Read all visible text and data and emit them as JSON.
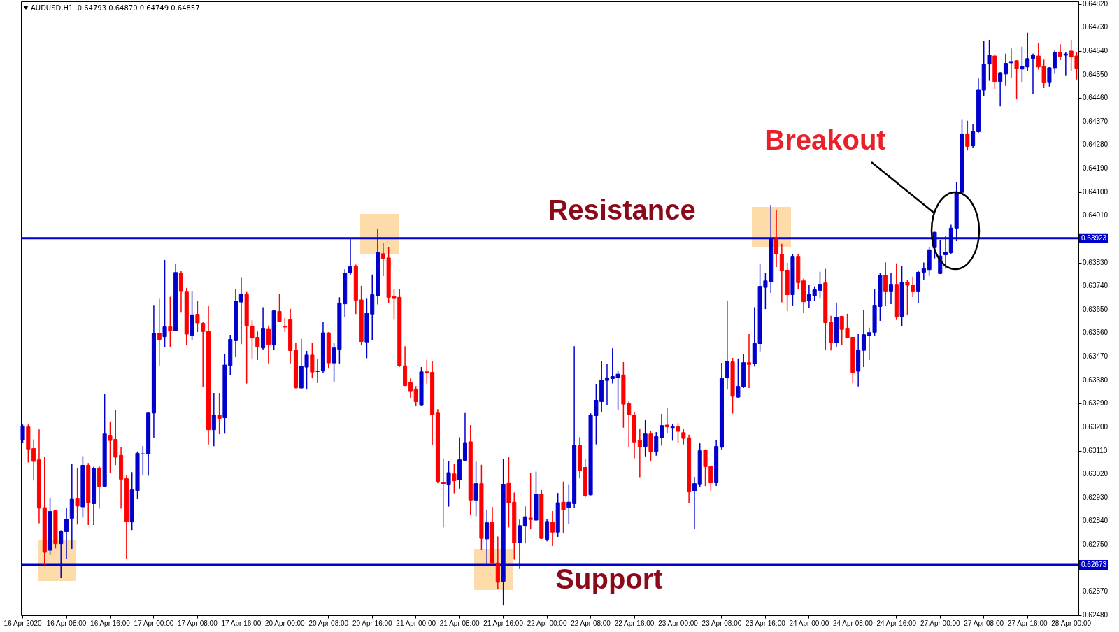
{
  "chart_data": {
    "type": "candlestick",
    "title": "AUDUSD,H1  0.64793 0.64870 0.64749 0.64857",
    "categories": [
      "16 Apr 2020",
      null,
      null,
      null,
      null,
      null,
      null,
      null,
      "16 Apr 08:00",
      null,
      null,
      null,
      null,
      null,
      null,
      null,
      "16 Apr 16:00",
      null,
      null,
      null,
      null,
      null,
      null,
      null,
      "17 Apr 00:00",
      null,
      null,
      null,
      null,
      null,
      null,
      null,
      "17 Apr 08:00",
      null,
      null,
      null,
      null,
      null,
      null,
      null,
      "17 Apr 16:00",
      null,
      null,
      null,
      null,
      null,
      null,
      null,
      "20 Apr 00:00",
      null,
      null,
      null,
      null,
      null,
      null,
      null,
      "20 Apr 08:00",
      null,
      null,
      null,
      null,
      null,
      null,
      null,
      "20 Apr 16:00",
      null,
      null,
      null,
      null,
      null,
      null,
      null,
      "21 Apr 00:00",
      null,
      null,
      null,
      null,
      null,
      null,
      null,
      "21 Apr 08:00",
      null,
      null,
      null,
      null,
      null,
      null,
      null,
      "21 Apr 16:00",
      null,
      null,
      null,
      null,
      null,
      null,
      null,
      "22 Apr 00:00",
      null,
      null,
      null,
      null,
      null,
      null,
      null,
      "22 Apr 08:00",
      null,
      null,
      null,
      null,
      null,
      null,
      null,
      "22 Apr 16:00",
      null,
      null,
      null,
      null,
      null,
      null,
      null,
      "23 Apr 00:00",
      null,
      null,
      null,
      null,
      null,
      null,
      null,
      "23 Apr 08:00",
      null,
      null,
      null,
      null,
      null,
      null,
      null,
      "23 Apr 16:00",
      null,
      null,
      null,
      null,
      null,
      null,
      null,
      "24 Apr 00:00",
      null,
      null,
      null,
      null,
      null,
      null,
      null,
      "24 Apr 08:00",
      null,
      null,
      null,
      null,
      null,
      null,
      null,
      "24 Apr 16:00",
      null,
      null,
      null,
      null,
      null,
      null,
      null,
      "27 Apr 00:00",
      null,
      null,
      null,
      null,
      null,
      null,
      null,
      "27 Apr 08:00",
      null,
      null,
      null,
      null,
      null,
      null,
      null,
      "27 Apr 16:00",
      null,
      null,
      null,
      null,
      null,
      null,
      null,
      "28 Apr 00:00",
      null
    ],
    "ohlc": [
      [
        0.63151,
        0.63208,
        0.63141,
        0.63203
      ],
      [
        0.63201,
        0.63208,
        0.63067,
        0.63116
      ],
      [
        0.63118,
        0.63151,
        0.62998,
        0.63069
      ],
      [
        0.63075,
        0.63189,
        0.62834,
        0.6289
      ],
      [
        0.62892,
        0.63083,
        0.62675,
        0.62721
      ],
      [
        0.62729,
        0.62928,
        0.62713,
        0.62877
      ],
      [
        0.6288,
        0.62882,
        0.62738,
        0.62754
      ],
      [
        0.62754,
        0.62803,
        0.62624,
        0.628
      ],
      [
        0.628,
        0.6289,
        0.62697,
        0.62847
      ],
      [
        0.62851,
        0.63056,
        0.62736,
        0.62924
      ],
      [
        0.62926,
        0.63041,
        0.62829,
        0.62898
      ],
      [
        0.62895,
        0.63087,
        0.62856,
        0.63054
      ],
      [
        0.63054,
        0.63061,
        0.62827,
        0.62911
      ],
      [
        0.62907,
        0.63047,
        0.62827,
        0.63041
      ],
      [
        0.63044,
        0.63051,
        0.6289,
        0.62974
      ],
      [
        0.62974,
        0.63326,
        0.62974,
        0.63174
      ],
      [
        0.63169,
        0.6322,
        0.63028,
        0.63149
      ],
      [
        0.63153,
        0.63264,
        0.63057,
        0.63085
      ],
      [
        0.63092,
        0.63123,
        0.6289,
        0.63001
      ],
      [
        0.63003,
        0.63013,
        0.62697,
        0.62839
      ],
      [
        0.62837,
        0.63026,
        0.62808,
        0.6296
      ],
      [
        0.62957,
        0.63105,
        0.62926,
        0.631
      ],
      [
        0.63097,
        0.63126,
        0.6302,
        0.63098
      ],
      [
        0.63097,
        0.63254,
        0.63016,
        0.63254
      ],
      [
        0.63254,
        0.63666,
        0.63162,
        0.63559
      ],
      [
        0.63559,
        0.63692,
        0.63438,
        0.63536
      ],
      [
        0.63546,
        0.63838,
        0.63507,
        0.63584
      ],
      [
        0.63584,
        0.63697,
        0.6351,
        0.63569
      ],
      [
        0.63569,
        0.63823,
        0.63569,
        0.63792
      ],
      [
        0.6379,
        0.63795,
        0.63643,
        0.63722
      ],
      [
        0.6372,
        0.63731,
        0.63517,
        0.63556
      ],
      [
        0.63551,
        0.6372,
        0.63536,
        0.6363
      ],
      [
        0.63632,
        0.63681,
        0.63566,
        0.63599
      ],
      [
        0.63597,
        0.63602,
        0.63356,
        0.63566
      ],
      [
        0.63566,
        0.63664,
        0.63136,
        0.6319
      ],
      [
        0.6319,
        0.63329,
        0.63129,
        0.63246
      ],
      [
        0.63246,
        0.63329,
        0.63175,
        0.63233
      ],
      [
        0.63236,
        0.63479,
        0.63177,
        0.63438
      ],
      [
        0.63436,
        0.63551,
        0.63403,
        0.63536
      ],
      [
        0.63531,
        0.63728,
        0.63472,
        0.63682
      ],
      [
        0.63679,
        0.63772,
        0.6352,
        0.6371
      ],
      [
        0.6371,
        0.63718,
        0.63369,
        0.63587
      ],
      [
        0.63587,
        0.63607,
        0.63461,
        0.63541
      ],
      [
        0.63544,
        0.63564,
        0.63459,
        0.63507
      ],
      [
        0.63503,
        0.63657,
        0.63499,
        0.63579
      ],
      [
        0.63577,
        0.63587,
        0.63446,
        0.63517
      ],
      [
        0.63517,
        0.63645,
        0.63497,
        0.63645
      ],
      [
        0.63643,
        0.63707,
        0.63605,
        0.63605
      ],
      [
        0.63585,
        0.63616,
        0.63566,
        0.63583
      ],
      [
        0.63611,
        0.63651,
        0.63446,
        0.63493
      ],
      [
        0.63495,
        0.6352,
        0.6335,
        0.63351
      ],
      [
        0.6335,
        0.63536,
        0.63348,
        0.63433
      ],
      [
        0.6343,
        0.6349,
        0.63346,
        0.63476
      ],
      [
        0.63476,
        0.6352,
        0.63389,
        0.63411
      ],
      [
        0.63414,
        0.63459,
        0.63371,
        0.63414
      ],
      [
        0.63415,
        0.63602,
        0.63408,
        0.63561
      ],
      [
        0.63561,
        0.63561,
        0.63426,
        0.63446
      ],
      [
        0.63446,
        0.63522,
        0.63375,
        0.63503
      ],
      [
        0.63498,
        0.63695,
        0.63446,
        0.63674
      ],
      [
        0.63672,
        0.63802,
        0.63625,
        0.63789
      ],
      [
        0.6379,
        0.6392,
        0.63784,
        0.63815
      ],
      [
        0.63817,
        0.6382,
        0.63635,
        0.63686
      ],
      [
        0.63687,
        0.63739,
        0.63517,
        0.63528
      ],
      [
        0.63526,
        0.63692,
        0.63466,
        0.63636
      ],
      [
        0.63633,
        0.63782,
        0.63536,
        0.63707
      ],
      [
        0.63702,
        0.63958,
        0.63672,
        0.63869
      ],
      [
        0.63864,
        0.63902,
        0.6378,
        0.63846
      ],
      [
        0.63848,
        0.63886,
        0.63676,
        0.63697
      ],
      [
        0.637,
        0.63725,
        0.63613,
        0.63695
      ],
      [
        0.63697,
        0.63727,
        0.63433,
        0.63435
      ],
      [
        0.63435,
        0.63508,
        0.63359,
        0.63359
      ],
      [
        0.6337,
        0.63385,
        0.63313,
        0.63339
      ],
      [
        0.63343,
        0.63355,
        0.63282,
        0.63298
      ],
      [
        0.63283,
        0.63428,
        0.63283,
        0.63412
      ],
      [
        0.63412,
        0.63456,
        0.63369,
        0.63408
      ],
      [
        0.6341,
        0.63452,
        0.63134,
        0.63247
      ],
      [
        0.63254,
        0.63267,
        0.62987,
        0.62992
      ],
      [
        0.6299,
        0.63078,
        0.62818,
        0.62982
      ],
      [
        0.62979,
        0.63069,
        0.62898,
        0.63026
      ],
      [
        0.63021,
        0.63058,
        0.62949,
        0.62995
      ],
      [
        0.62998,
        0.63159,
        0.62967,
        0.63075
      ],
      [
        0.63073,
        0.63252,
        0.63073,
        0.63141
      ],
      [
        0.63144,
        0.63206,
        0.62866,
        0.62921
      ],
      [
        0.62921,
        0.63066,
        0.62861,
        0.62984
      ],
      [
        0.62984,
        0.63054,
        0.62733,
        0.62774
      ],
      [
        0.62772,
        0.6288,
        0.62675,
        0.62834
      ],
      [
        0.62836,
        0.62892,
        0.62677,
        0.62678
      ],
      [
        0.6268,
        0.62779,
        0.62582,
        0.62606
      ],
      [
        0.6261,
        0.63077,
        0.62519,
        0.6298
      ],
      [
        0.62985,
        0.63083,
        0.62818,
        0.62911
      ],
      [
        0.62913,
        0.62948,
        0.62695,
        0.62757
      ],
      [
        0.62757,
        0.62844,
        0.62659,
        0.62823
      ],
      [
        0.62821,
        0.62895,
        0.62757,
        0.62857
      ],
      [
        0.62852,
        0.63023,
        0.62811,
        0.62846
      ],
      [
        0.62844,
        0.63028,
        0.62844,
        0.62943
      ],
      [
        0.62943,
        0.62957,
        0.62774,
        0.62774
      ],
      [
        0.6277,
        0.62847,
        0.62765,
        0.62839
      ],
      [
        0.62837,
        0.62877,
        0.62747,
        0.62798
      ],
      [
        0.62798,
        0.62946,
        0.62782,
        0.62911
      ],
      [
        0.62913,
        0.6299,
        0.62795,
        0.62883
      ],
      [
        0.62893,
        0.62977,
        0.62832,
        0.62913
      ],
      [
        0.62907,
        0.63508,
        0.62893,
        0.63131
      ],
      [
        0.63131,
        0.63159,
        0.63006,
        0.63034
      ],
      [
        0.63046,
        0.63075,
        0.62934,
        0.62939
      ],
      [
        0.62941,
        0.63251,
        0.62941,
        0.63247
      ],
      [
        0.63244,
        0.63364,
        0.63136,
        0.63303
      ],
      [
        0.63298,
        0.63452,
        0.63259,
        0.6338
      ],
      [
        0.63379,
        0.63441,
        0.63287,
        0.63389
      ],
      [
        0.63386,
        0.635,
        0.63369,
        0.63394
      ],
      [
        0.63389,
        0.63415,
        0.63266,
        0.63403
      ],
      [
        0.634,
        0.63447,
        0.632,
        0.63288
      ],
      [
        0.6329,
        0.633,
        0.63126,
        0.63247
      ],
      [
        0.63247,
        0.63257,
        0.63083,
        0.63143
      ],
      [
        0.63149,
        0.63192,
        0.63008,
        0.63124
      ],
      [
        0.63126,
        0.63225,
        0.6309,
        0.63174
      ],
      [
        0.63174,
        0.63184,
        0.63073,
        0.63107
      ],
      [
        0.63107,
        0.63179,
        0.63093,
        0.63164
      ],
      [
        0.63159,
        0.63249,
        0.63131,
        0.63206
      ],
      [
        0.63208,
        0.6327,
        0.63179,
        0.63201
      ],
      [
        0.63198,
        0.63211,
        0.6315,
        0.63201
      ],
      [
        0.63201,
        0.63213,
        0.63141,
        0.63184
      ],
      [
        0.63179,
        0.63192,
        0.63136,
        0.63157
      ],
      [
        0.63159,
        0.63169,
        0.62911,
        0.62952
      ],
      [
        0.62955,
        0.63005,
        0.62813,
        0.62984
      ],
      [
        0.6298,
        0.63136,
        0.62974,
        0.6311
      ],
      [
        0.63113,
        0.63113,
        0.62977,
        0.63049
      ],
      [
        0.63049,
        0.63049,
        0.62959,
        0.62987
      ],
      [
        0.62987,
        0.63148,
        0.62977,
        0.63126
      ],
      [
        0.63123,
        0.63444,
        0.63116,
        0.63387
      ],
      [
        0.63389,
        0.63682,
        0.63346,
        0.63452
      ],
      [
        0.6345,
        0.63463,
        0.63254,
        0.63318
      ],
      [
        0.63315,
        0.63461,
        0.63312,
        0.63356
      ],
      [
        0.63354,
        0.63477,
        0.63352,
        0.63447
      ],
      [
        0.63447,
        0.63554,
        0.63352,
        0.6344
      ],
      [
        0.63443,
        0.63657,
        0.63434,
        0.6352
      ],
      [
        0.6352,
        0.63822,
        0.63492,
        0.63739
      ],
      [
        0.63735,
        0.63787,
        0.63654,
        0.6376
      ],
      [
        0.63756,
        0.64049,
        0.63716,
        0.63921
      ],
      [
        0.63921,
        0.6403,
        0.63815,
        0.63863
      ],
      [
        0.63862,
        0.639,
        0.6368,
        0.63798
      ],
      [
        0.63801,
        0.63827,
        0.63646,
        0.63707
      ],
      [
        0.63707,
        0.63862,
        0.63668,
        0.63854
      ],
      [
        0.63854,
        0.63862,
        0.63729,
        0.63753
      ],
      [
        0.6376,
        0.63767,
        0.6364,
        0.6368
      ],
      [
        0.63684,
        0.63743,
        0.63657,
        0.63707
      ],
      [
        0.63702,
        0.63737,
        0.63684,
        0.63726
      ],
      [
        0.63724,
        0.63793,
        0.63697,
        0.63747
      ],
      [
        0.63752,
        0.63804,
        0.63499,
        0.636
      ],
      [
        0.63602,
        0.63624,
        0.63496,
        0.63523
      ],
      [
        0.63523,
        0.63675,
        0.63507,
        0.63621
      ],
      [
        0.63624,
        0.63624,
        0.63517,
        0.63574
      ],
      [
        0.63579,
        0.63632,
        0.63542,
        0.63542
      ],
      [
        0.63544,
        0.63544,
        0.6337,
        0.6341
      ],
      [
        0.63414,
        0.63554,
        0.63358,
        0.63496
      ],
      [
        0.63494,
        0.63645,
        0.63432,
        0.63554
      ],
      [
        0.63552,
        0.63579,
        0.63459,
        0.63562
      ],
      [
        0.63563,
        0.63726,
        0.6355,
        0.63667
      ],
      [
        0.63662,
        0.63787,
        0.63609,
        0.63782
      ],
      [
        0.63782,
        0.63829,
        0.63668,
        0.63721
      ],
      [
        0.63721,
        0.63787,
        0.63673,
        0.63747
      ],
      [
        0.63747,
        0.63825,
        0.63612,
        0.63621
      ],
      [
        0.63624,
        0.63814,
        0.6359,
        0.63755
      ],
      [
        0.63755,
        0.63762,
        0.63633,
        0.63743
      ],
      [
        0.63744,
        0.63774,
        0.637,
        0.63721
      ],
      [
        0.63721,
        0.63798,
        0.63676,
        0.63793
      ],
      [
        0.63793,
        0.63828,
        0.63764,
        0.63807
      ],
      [
        0.63803,
        0.63886,
        0.63781,
        0.63879
      ],
      [
        0.63887,
        0.63946,
        0.63848,
        0.63946
      ],
      [
        0.63788,
        0.63914,
        0.63788,
        0.63855
      ],
      [
        0.6386,
        0.6393,
        0.63809,
        0.63869
      ],
      [
        0.63868,
        0.63973,
        0.63863,
        0.63962
      ],
      [
        0.63962,
        0.64137,
        0.63914,
        0.64101
      ],
      [
        0.64099,
        0.64377,
        0.64099,
        0.64323
      ],
      [
        0.64323,
        0.64371,
        0.64261,
        0.64275
      ],
      [
        0.64277,
        0.64358,
        0.64272,
        0.64331
      ],
      [
        0.64331,
        0.64533,
        0.64328,
        0.6449
      ],
      [
        0.6449,
        0.64676,
        0.64469,
        0.6459
      ],
      [
        0.6459,
        0.64681,
        0.64528,
        0.64624
      ],
      [
        0.64621,
        0.64626,
        0.64497,
        0.64521
      ],
      [
        0.64523,
        0.64557,
        0.6443,
        0.64557
      ],
      [
        0.64552,
        0.64628,
        0.64509,
        0.64593
      ],
      [
        0.64595,
        0.64648,
        0.6454,
        0.646
      ],
      [
        0.64603,
        0.64603,
        0.64457,
        0.64573
      ],
      [
        0.64571,
        0.64655,
        0.64521,
        0.64581
      ],
      [
        0.64579,
        0.64708,
        0.64566,
        0.64611
      ],
      [
        0.64611,
        0.64628,
        0.64478,
        0.64624
      ],
      [
        0.64621,
        0.64669,
        0.64571,
        0.64579
      ],
      [
        0.64581,
        0.64605,
        0.645,
        0.64518
      ],
      [
        0.64519,
        0.64576,
        0.64506,
        0.64576
      ],
      [
        0.64576,
        0.64641,
        0.64555,
        0.64636
      ],
      [
        0.64636,
        0.64664,
        0.64607,
        0.64619
      ],
      [
        0.64624,
        0.64633,
        0.64549,
        0.64629
      ],
      [
        0.6464,
        0.64681,
        0.64566,
        0.64617
      ],
      [
        0.64621,
        0.64635,
        0.64533,
        0.64574
      ]
    ],
    "colors": [
      "#0000cc",
      "#ff0000",
      "#ff0000",
      "#ff0000",
      "#ff0000",
      "#0000cc",
      "#ff0000",
      "#0000cc",
      "#0000cc",
      "#0000cc",
      "#ff0000",
      "#0000cc",
      "#ff0000",
      "#0000cc",
      "#ff0000",
      "#0000cc",
      "#ff0000",
      "#ff0000",
      "#ff0000",
      "#ff0000",
      "#0000cc",
      "#0000cc",
      "#0000cc",
      "#0000cc",
      "#0000cc",
      "#ff0000",
      "#0000cc",
      "#ff0000",
      "#0000cc",
      "#ff0000",
      "#ff0000",
      "#0000cc",
      "#ff0000",
      "#ff0000",
      "#ff0000",
      "#0000cc",
      "#ff0000",
      "#0000cc",
      "#0000cc",
      "#0000cc",
      "#0000cc",
      "#ff0000",
      "#ff0000",
      "#ff0000",
      "#0000cc",
      "#ff0000",
      "#0000cc",
      "#ff0000",
      "#ff0000",
      "#ff0000",
      "#ff0000",
      "#0000cc",
      "#0000cc",
      "#ff0000",
      "#000000",
      "#0000cc",
      "#ff0000",
      "#0000cc",
      "#0000cc",
      "#0000cc",
      "#0000cc",
      "#ff0000",
      "#ff0000",
      "#0000cc",
      "#0000cc",
      "#0000cc",
      "#ff0000",
      "#ff0000",
      "#ff0000",
      "#ff0000",
      "#ff0000",
      "#ff0000",
      "#ff0000",
      "#0000cc",
      "#ff0000",
      "#ff0000",
      "#ff0000",
      "#ff0000",
      "#0000cc",
      "#ff0000",
      "#0000cc",
      "#0000cc",
      "#ff0000",
      "#0000cc",
      "#ff0000",
      "#0000cc",
      "#ff0000",
      "#ff0000",
      "#0000cc",
      "#ff0000",
      "#ff0000",
      "#0000cc",
      "#0000cc",
      "#ff0000",
      "#0000cc",
      "#ff0000",
      "#0000cc",
      "#ff0000",
      "#0000cc",
      "#ff0000",
      "#0000cc",
      "#0000cc",
      "#ff0000",
      "#ff0000",
      "#0000cc",
      "#0000cc",
      "#0000cc",
      "#0000cc",
      "#0000cc",
      "#0000cc",
      "#ff0000",
      "#ff0000",
      "#ff0000",
      "#ff0000",
      "#0000cc",
      "#ff0000",
      "#0000cc",
      "#0000cc",
      "#ff0000",
      "#0000cc",
      "#ff0000",
      "#ff0000",
      "#ff0000",
      "#0000cc",
      "#0000cc",
      "#ff0000",
      "#ff0000",
      "#0000cc",
      "#0000cc",
      "#0000cc",
      "#ff0000",
      "#0000cc",
      "#0000cc",
      "#ff0000",
      "#0000cc",
      "#0000cc",
      "#0000cc",
      "#0000cc",
      "#ff0000",
      "#ff0000",
      "#ff0000",
      "#0000cc",
      "#ff0000",
      "#ff0000",
      "#0000cc",
      "#0000cc",
      "#0000cc",
      "#ff0000",
      "#ff0000",
      "#0000cc",
      "#ff0000",
      "#ff0000",
      "#ff0000",
      "#0000cc",
      "#0000cc",
      "#0000cc",
      "#0000cc",
      "#0000cc",
      "#ff0000",
      "#0000cc",
      "#ff0000",
      "#0000cc",
      "#ff0000",
      "#ff0000",
      "#0000cc",
      "#0000cc",
      "#0000cc",
      "#0000cc",
      "#0000cc",
      "#0000cc",
      "#0000cc",
      "#0000cc",
      "#0000cc",
      "#ff0000",
      "#0000cc",
      "#0000cc",
      "#0000cc",
      "#0000cc",
      "#ff0000",
      "#0000cc",
      "#0000cc",
      "#0000cc",
      "#ff0000",
      "#0000cc",
      "#0000cc",
      "#0000cc",
      "#ff0000",
      "#ff0000",
      "#0000cc",
      "#0000cc",
      "#ff0000",
      "#0000cc",
      "#ff0000",
      "#ff0000"
    ],
    "ylim": [
      0.6248,
      0.6483
    ],
    "yticks": [
      {
        "value": 0.6248,
        "label": "0.62480"
      },
      {
        "value": 0.6257,
        "label": "0.62570"
      },
      {
        "value": 0.6275,
        "label": "0.62750"
      },
      {
        "value": 0.6284,
        "label": "0.62840"
      },
      {
        "value": 0.6293,
        "label": "0.62930"
      },
      {
        "value": 0.6302,
        "label": "0.63020"
      },
      {
        "value": 0.6311,
        "label": "0.63110"
      },
      {
        "value": 0.632,
        "label": "0.63200"
      },
      {
        "value": 0.6329,
        "label": "0.63290"
      },
      {
        "value": 0.6338,
        "label": "0.63380"
      },
      {
        "value": 0.6347,
        "label": "0.63470"
      },
      {
        "value": 0.6356,
        "label": "0.63560"
      },
      {
        "value": 0.6365,
        "label": "0.63650"
      },
      {
        "value": 0.6374,
        "label": "0.63740"
      },
      {
        "value": 0.6383,
        "label": "0.63830"
      },
      {
        "value": 0.6401,
        "label": "0.64010"
      },
      {
        "value": 0.641,
        "label": "0.64100"
      },
      {
        "value": 0.6419,
        "label": "0.64190"
      },
      {
        "value": 0.6428,
        "label": "0.64280"
      },
      {
        "value": 0.6437,
        "label": "0.64370"
      },
      {
        "value": 0.6446,
        "label": "0.64460"
      },
      {
        "value": 0.6455,
        "label": "0.64550"
      },
      {
        "value": 0.6464,
        "label": "0.64640"
      },
      {
        "value": 0.6473,
        "label": "0.64730"
      },
      {
        "value": 0.6482,
        "label": "0.64820"
      }
    ],
    "ref_lines": [
      {
        "axis": "y",
        "value": 0.63923,
        "label": "0.63923",
        "color": "#0000cc"
      },
      {
        "axis": "y",
        "value": 0.62673,
        "label": "0.62673",
        "color": "#0000cc"
      }
    ],
    "annotations": [
      "Resistance",
      "Support",
      "Breakout"
    ]
  }
}
